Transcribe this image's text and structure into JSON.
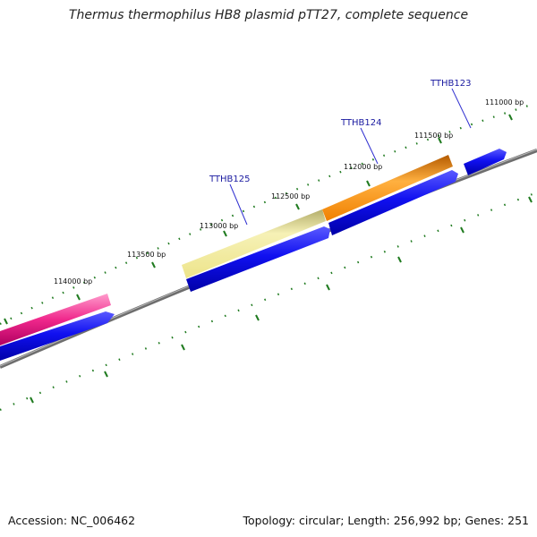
{
  "title": "Thermus thermophilus HB8 plasmid pTT27, complete sequence",
  "footer": {
    "accession": "Accession: NC_006462",
    "summary": "Topology: circular; Length: 256,992 bp; Genes: 251"
  },
  "scale": {
    "unit": "bp",
    "tick_labels": [
      "111000 bp",
      "111500 bp",
      "112000 bp",
      "112500 bp",
      "113000 bp",
      "113500 bp",
      "114000 bp"
    ]
  },
  "gene_labels": [
    "TTHB123",
    "TTHB124",
    "TTHB125"
  ],
  "features": [
    {
      "name": "pink-feature",
      "color": "#f0288c",
      "strand": "forward",
      "track": "outer"
    },
    {
      "name": "khaki-feature",
      "color": "#f3ec9c",
      "strand": "forward",
      "track": "outer"
    },
    {
      "name": "orange-feature",
      "color": "#f7900a",
      "strand": "forward",
      "track": "outer"
    },
    {
      "name": "blue-genes",
      "color": "#0a0ae6",
      "strand": "forward",
      "track": "inner"
    }
  ],
  "colors": {
    "backbone": "#777777",
    "tick": "#1f7a1f",
    "gene_label": "#1a1aa0",
    "callout_line": "#3030d0"
  }
}
